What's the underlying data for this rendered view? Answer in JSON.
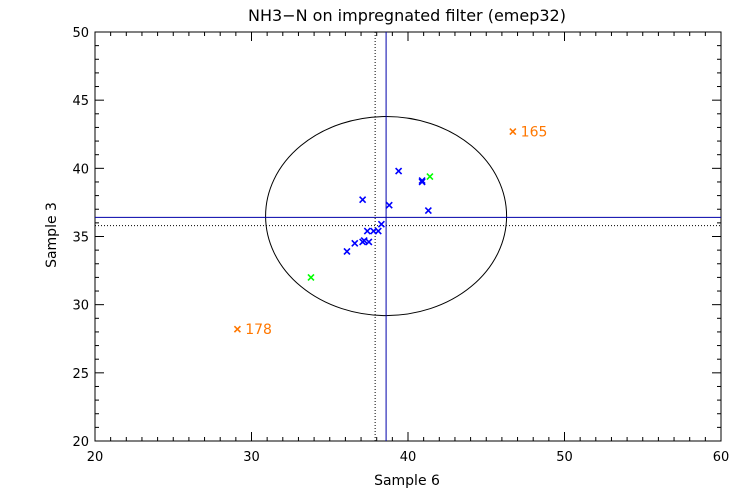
{
  "chart_data": {
    "type": "scatter",
    "title": "NH3−N on impregnated filter (emep32)",
    "xlabel": "Sample 6",
    "ylabel": "Sample 3",
    "xlim": [
      20,
      60
    ],
    "ylim": [
      20,
      50
    ],
    "xticks": [
      20,
      30,
      40,
      50,
      60
    ],
    "yticks": [
      20,
      25,
      30,
      35,
      40,
      45,
      50
    ],
    "grid": false,
    "series": [
      {
        "color": "#0000ff",
        "marker": "x",
        "points": [
          [
            37.1,
            37.7
          ],
          [
            39.4,
            39.8
          ],
          [
            40.9,
            39.1
          ],
          [
            40.9,
            39.0
          ],
          [
            41.3,
            36.9
          ],
          [
            38.8,
            37.3
          ],
          [
            38.3,
            35.9
          ],
          [
            37.4,
            35.4
          ],
          [
            37.8,
            35.4
          ],
          [
            38.1,
            35.4
          ],
          [
            37.2,
            34.7
          ],
          [
            37.1,
            34.6
          ],
          [
            36.6,
            34.5
          ],
          [
            36.1,
            33.9
          ],
          [
            37.5,
            34.6
          ]
        ]
      },
      {
        "color": "#00ff00",
        "marker": "x",
        "points": [
          [
            41.4,
            39.4
          ],
          [
            33.8,
            32.0
          ]
        ]
      },
      {
        "color": "#ff7700",
        "marker": "x",
        "points": [
          [
            46.7,
            42.7
          ],
          [
            29.1,
            28.2
          ]
        ]
      }
    ],
    "annotations": [
      {
        "text": "165",
        "x": 47.2,
        "y": 42.7,
        "color": "#ff7700"
      },
      {
        "text": "178",
        "x": 29.6,
        "y": 28.2,
        "color": "#ff7700"
      }
    ],
    "reference_lines": {
      "solid": {
        "x": 38.6,
        "y": 36.4,
        "color": "#0000aa"
      },
      "dotted": {
        "x": 37.9,
        "y": 35.8,
        "color": "#000000"
      }
    },
    "ellipse": {
      "cx": 38.6,
      "cy": 36.5,
      "rx": 7.7,
      "ry": 7.3,
      "color": "#000000"
    }
  }
}
